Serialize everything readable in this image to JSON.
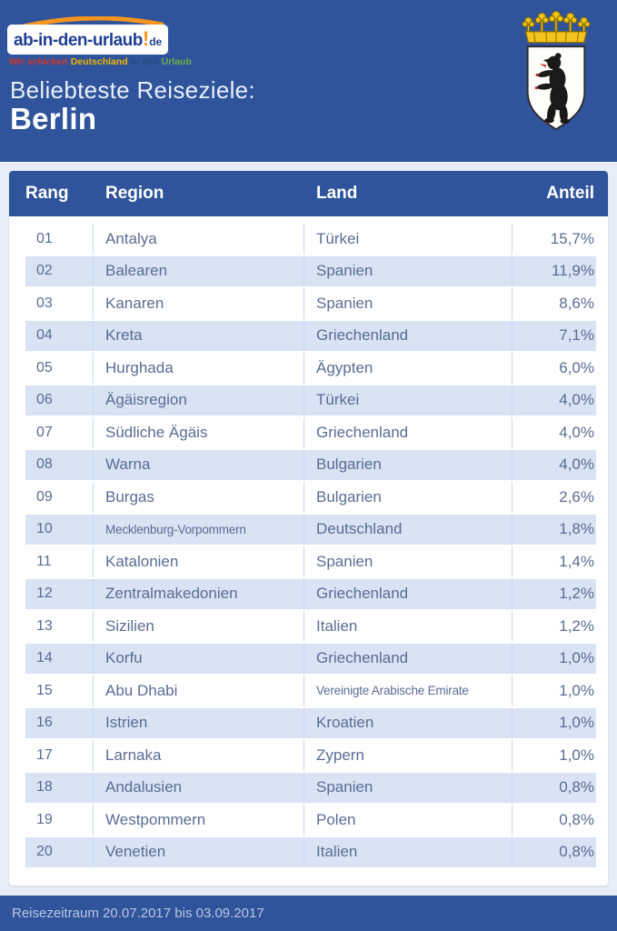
{
  "brand": {
    "logo_main": "ab-in-den-urlaub",
    "logo_exclaim": "!",
    "logo_tld": "de",
    "tagline": [
      {
        "text": "Wir schicken",
        "color": "#D3362D"
      },
      {
        "text": "Deutschland",
        "color": "#F0B400"
      },
      {
        "text": "in den",
        "color": "#27477E"
      },
      {
        "text": "Urlaub",
        "color": "#6FAE44"
      }
    ]
  },
  "header": {
    "subtitle": "Beliebteste Reiseziele:",
    "title": "Berlin",
    "crest": "berlin-coat-of-arms-bear"
  },
  "table": {
    "columns": [
      "Rang",
      "Region",
      "Land",
      "Anteil"
    ],
    "rows": [
      {
        "rang": "01",
        "region": "Antalya",
        "land": "Türkei",
        "anteil": "15,7%"
      },
      {
        "rang": "02",
        "region": "Balearen",
        "land": "Spanien",
        "anteil": "11,9%"
      },
      {
        "rang": "03",
        "region": "Kanaren",
        "land": "Spanien",
        "anteil": "8,6%"
      },
      {
        "rang": "04",
        "region": "Kreta",
        "land": "Griechenland",
        "anteil": "7,1%"
      },
      {
        "rang": "05",
        "region": "Hurghada",
        "land": "Ägypten",
        "anteil": "6,0%"
      },
      {
        "rang": "06",
        "region": "Ägäisregion",
        "land": "Türkei",
        "anteil": "4,0%"
      },
      {
        "rang": "07",
        "region": "Südliche Ägäis",
        "land": "Griechenland",
        "anteil": "4,0%"
      },
      {
        "rang": "08",
        "region": "Warna",
        "land": "Bulgarien",
        "anteil": "4,0%"
      },
      {
        "rang": "09",
        "region": "Burgas",
        "land": "Bulgarien",
        "anteil": "2,6%"
      },
      {
        "rang": "10",
        "region": "Mecklenburg-Vorpommern",
        "land": "Deutschland",
        "anteil": "1,8%"
      },
      {
        "rang": "11",
        "region": "Katalonien",
        "land": "Spanien",
        "anteil": "1,4%"
      },
      {
        "rang": "12",
        "region": "Zentralmakedonien",
        "land": "Griechenland",
        "anteil": "1,2%"
      },
      {
        "rang": "13",
        "region": "Sizilien",
        "land": "Italien",
        "anteil": "1,2%"
      },
      {
        "rang": "14",
        "region": "Korfu",
        "land": "Griechenland",
        "anteil": "1,0%"
      },
      {
        "rang": "15",
        "region": "Abu Dhabi",
        "land": "Vereinigte Arabische Emirate",
        "anteil": "1,0%"
      },
      {
        "rang": "16",
        "region": "Istrien",
        "land": "Kroatien",
        "anteil": "1,0%"
      },
      {
        "rang": "17",
        "region": "Larnaka",
        "land": "Zypern",
        "anteil": "1,0%"
      },
      {
        "rang": "18",
        "region": "Andalusien",
        "land": "Spanien",
        "anteil": "0,8%"
      },
      {
        "rang": "19",
        "region": "Westpommern",
        "land": "Polen",
        "anteil": "0,8%"
      },
      {
        "rang": "20",
        "region": "Venetien",
        "land": "Italien",
        "anteil": "0,8%"
      }
    ]
  },
  "footer": {
    "text": "Reisezeitraum 20.07.2017 bis 03.09.2017"
  },
  "colors": {
    "primary_blue": "#2F549B",
    "light_background": "#E9EDF6",
    "panel_white": "#FFFFFF",
    "row_stripe": "#D9E3F4",
    "divider": "#C9D7EE",
    "row_text": "#5A6C94",
    "footer_text": "#B9C6E0",
    "logo_navy": "#1E3F94",
    "logo_orange": "#F7941D",
    "crown_gold": "#F2C31B",
    "bear_black": "#1A1A1A",
    "bear_red": "#D42B1E"
  }
}
